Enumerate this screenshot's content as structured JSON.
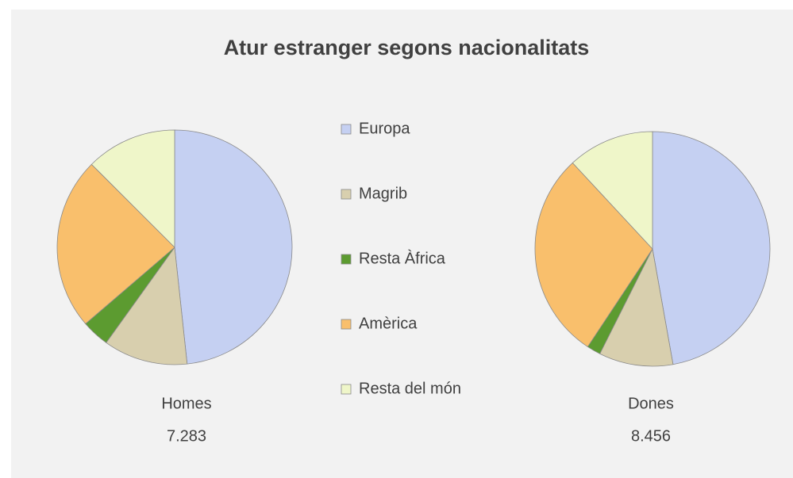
{
  "chart_data": [
    {
      "type": "pie",
      "title": "Atur estranger segons nacionalitats",
      "name": "Homes",
      "total": {
        "value": 7283,
        "label": "7.283"
      },
      "categories": [
        "Europa",
        "Magrib",
        "Resta Àfrica",
        "Amèrica",
        "Resta del món"
      ],
      "values": [
        48.3,
        11.6,
        3.8,
        23.8,
        12.5
      ],
      "colors": [
        "#c5d0f2",
        "#d8cfae",
        "#5c9b30",
        "#f9bf6c",
        "#eff6c9"
      ]
    },
    {
      "type": "pie",
      "name": "Dones",
      "total": {
        "value": 8456,
        "label": "8.456"
      },
      "categories": [
        "Europa",
        "Magrib",
        "Resta Àfrica",
        "Amèrica",
        "Resta del món"
      ],
      "values": [
        47.2,
        10.2,
        1.9,
        28.8,
        11.9
      ],
      "colors": [
        "#c5d0f2",
        "#d8cfae",
        "#5c9b30",
        "#f9bf6c",
        "#eff6c9"
      ]
    }
  ]
}
